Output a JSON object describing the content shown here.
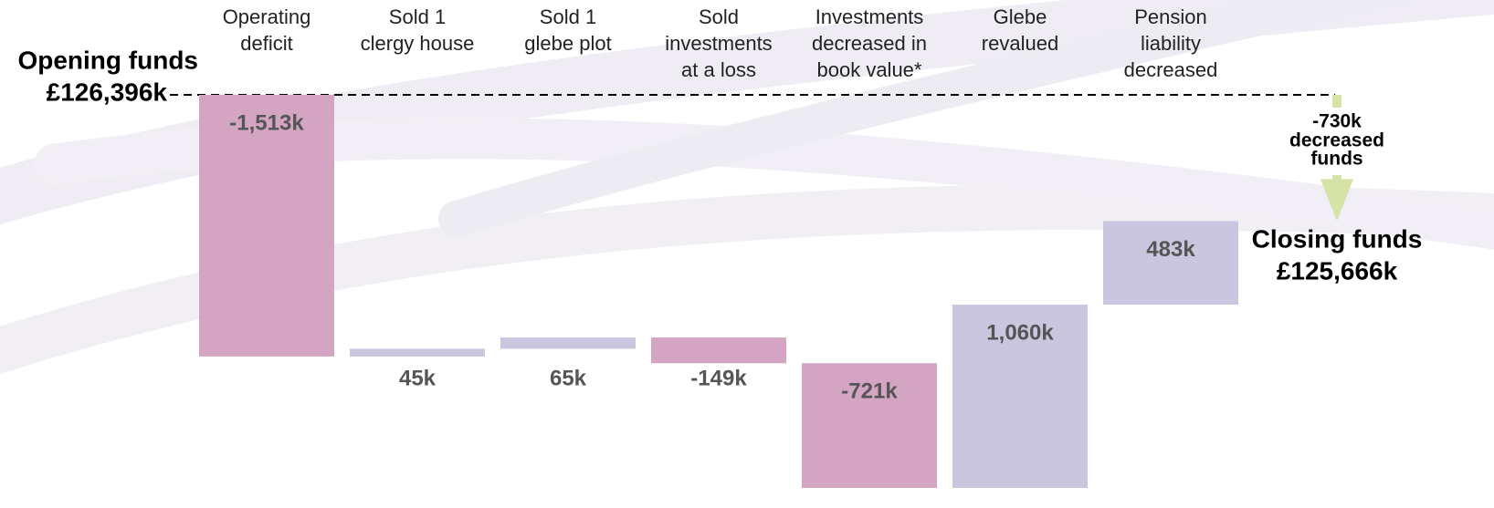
{
  "chart_data": {
    "type": "waterfall",
    "opening_title": "Opening funds",
    "opening_value": 126396,
    "opening_value_label": "£126,396k",
    "closing_title": "Closing funds",
    "closing_value": 125666,
    "closing_value_label": "£125,666k",
    "change": -730,
    "change_label": "-730k",
    "change_text": [
      "decreased",
      "funds"
    ],
    "categories": [
      [
        "Operating",
        "deficit"
      ],
      [
        "Sold 1",
        "clergy house"
      ],
      [
        "Sold 1",
        "glebe plot"
      ],
      [
        "Sold",
        "investments",
        "at a loss"
      ],
      [
        "Investments",
        "decreased in",
        "book value*"
      ],
      [
        "Glebe",
        "revalued"
      ],
      [
        "Pension",
        "liability",
        "decreased"
      ]
    ],
    "values": [
      -1513,
      45,
      65,
      -149,
      -721,
      1060,
      483
    ],
    "value_labels": [
      "-1,513k",
      "45k",
      "65k",
      "-149k",
      "-721k",
      "1,060k",
      "483k"
    ],
    "negative_color": "#d4a5c3",
    "positive_color": "#cbc6e0",
    "change_color": "#d5e3a6"
  }
}
